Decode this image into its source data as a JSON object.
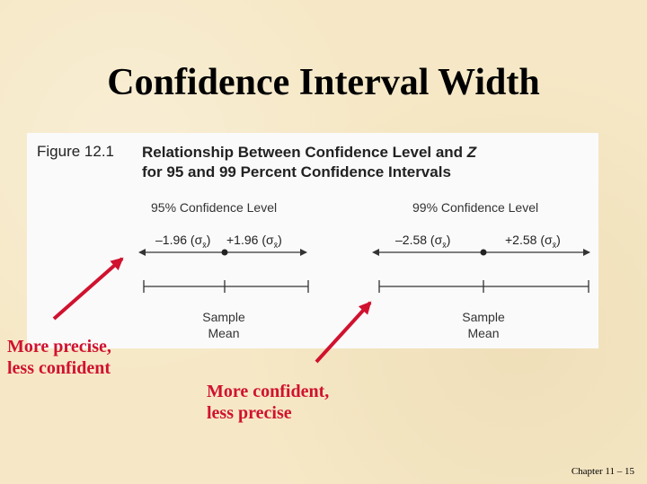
{
  "slide": {
    "title": "Confidence Interval Width",
    "footer": "Chapter 11 – 15"
  },
  "figure": {
    "label": "Figure 12.1",
    "title_line1": "Relationship Between Confidence Level and Z",
    "title_line1_main": "Relationship Between Confidence Level and ",
    "title_line1_z": "Z",
    "title_line2": "for 95 and 99 Percent Confidence Intervals"
  },
  "left_panel": {
    "level": "95% Confidence Level",
    "minus": "–1.96 (σ",
    "plus": "+1.96 (σ",
    "sample": "Sample",
    "mean": "Mean"
  },
  "right_panel": {
    "level": "99% Confidence Level",
    "minus": "–2.58 (σ",
    "plus": "+2.58 (σ",
    "sample": "Sample",
    "mean": "Mean"
  },
  "annotations": {
    "left_line1": "More precise,",
    "left_line2": "less confident",
    "right_line1": "More confident,",
    "right_line2": "less precise"
  },
  "colors": {
    "background": "#f6e8c6",
    "annotation": "#d0122f"
  }
}
